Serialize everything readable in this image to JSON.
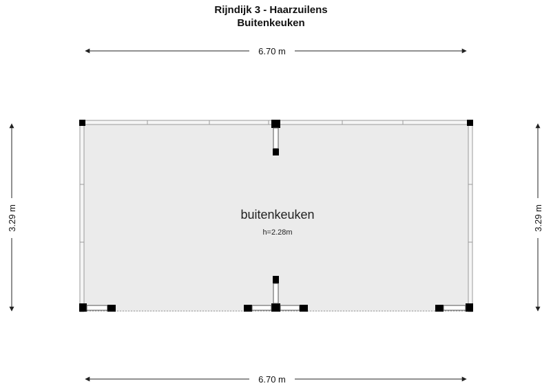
{
  "header": {
    "address": "Rijndijk 3 - Haarzuilens",
    "floor_name": "Buitenkeuken"
  },
  "dimensions": {
    "top_width": "6.70 m",
    "bottom_width": "6.70 m",
    "left_height": "3.29 m",
    "right_height": "3.29 m"
  },
  "room": {
    "name": "buitenkeuken",
    "height": "h=2.28m"
  },
  "colors": {
    "floor_fill": "#ebebeb",
    "wall": "#bdbdbd",
    "column": "#000000",
    "dimension_line": "#222222"
  }
}
